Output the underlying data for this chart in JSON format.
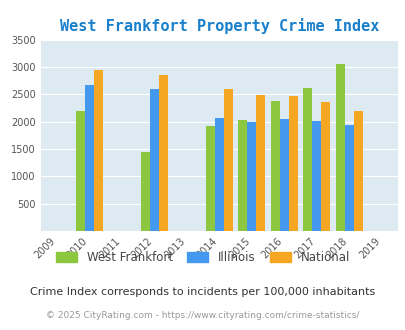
{
  "title": "West Frankfort Property Crime Index",
  "subtitle": "Crime Index corresponds to incidents per 100,000 inhabitants",
  "footer": "© 2025 CityRating.com - https://www.cityrating.com/crime-statistics/",
  "years": [
    2009,
    2010,
    2011,
    2012,
    2013,
    2014,
    2015,
    2016,
    2017,
    2018,
    2019
  ],
  "data_years": [
    2010,
    2012,
    2014,
    2015,
    2016,
    2017,
    2018
  ],
  "west_frankfort": [
    2200,
    1450,
    1920,
    2030,
    2380,
    2620,
    3050
  ],
  "illinois": [
    2670,
    2600,
    2070,
    2000,
    2050,
    2010,
    1940
  ],
  "national": [
    2950,
    2860,
    2590,
    2490,
    2470,
    2360,
    2200
  ],
  "bar_width": 0.28,
  "color_wf": "#8dc63f",
  "color_il": "#4499ee",
  "color_nat": "#f5a623",
  "bg_color": "#ddeaf2",
  "ylim": [
    0,
    3500
  ],
  "yticks": [
    0,
    500,
    1000,
    1500,
    2000,
    2500,
    3000,
    3500
  ],
  "title_color": "#1a80cc",
  "subtitle_color": "#333333",
  "footer_color": "#999999",
  "grid_color": "#ffffff",
  "tick_color": "#555555",
  "legend_label_color": "#444444"
}
